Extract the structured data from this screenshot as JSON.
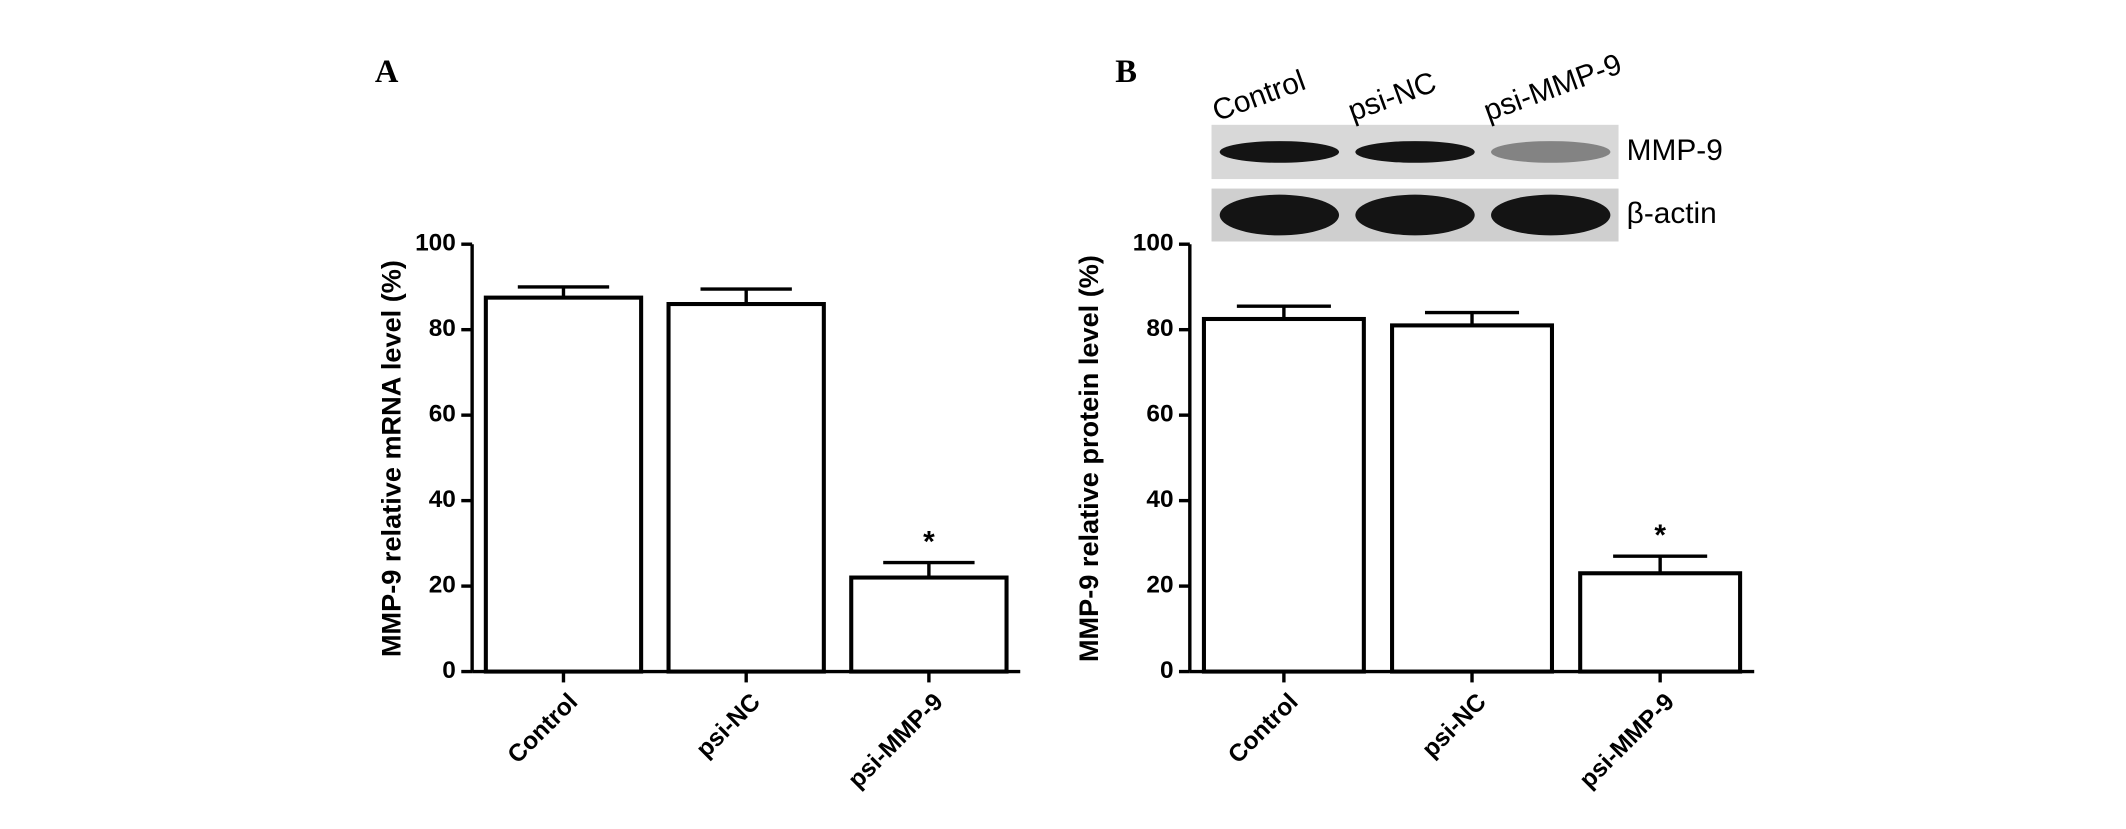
{
  "chart_data": [
    {
      "type": "bar",
      "panel": "A",
      "ylabel": "MMP-9 relative mRNA level (%)",
      "categories": [
        "Control",
        "psi-NC",
        "psi-MMP-9"
      ],
      "values": [
        87.5,
        86,
        22
      ],
      "errors": [
        2.5,
        3.5,
        3.5
      ],
      "significance": [
        null,
        null,
        "*"
      ],
      "color": "#ffffff",
      "ylim": [
        0,
        100
      ],
      "yticks": [
        0,
        20,
        40,
        60,
        80,
        100
      ]
    },
    {
      "type": "bar",
      "panel": "B",
      "ylabel": "MMP-9 relative protein level (%)",
      "categories": [
        "Control",
        "psi-NC",
        "psi-MMP-9"
      ],
      "values": [
        82.5,
        81,
        23
      ],
      "errors": [
        3,
        3,
        4
      ],
      "significance": [
        null,
        null,
        "*"
      ],
      "color": "#ffffff",
      "ylim": [
        0,
        100
      ],
      "yticks": [
        0,
        20,
        40,
        60,
        80,
        100
      ],
      "blot": {
        "lanes": [
          "Control",
          "psi-NC",
          "psi-MMP-9"
        ],
        "bands": [
          "MMP-9",
          "β-actin"
        ]
      }
    }
  ]
}
